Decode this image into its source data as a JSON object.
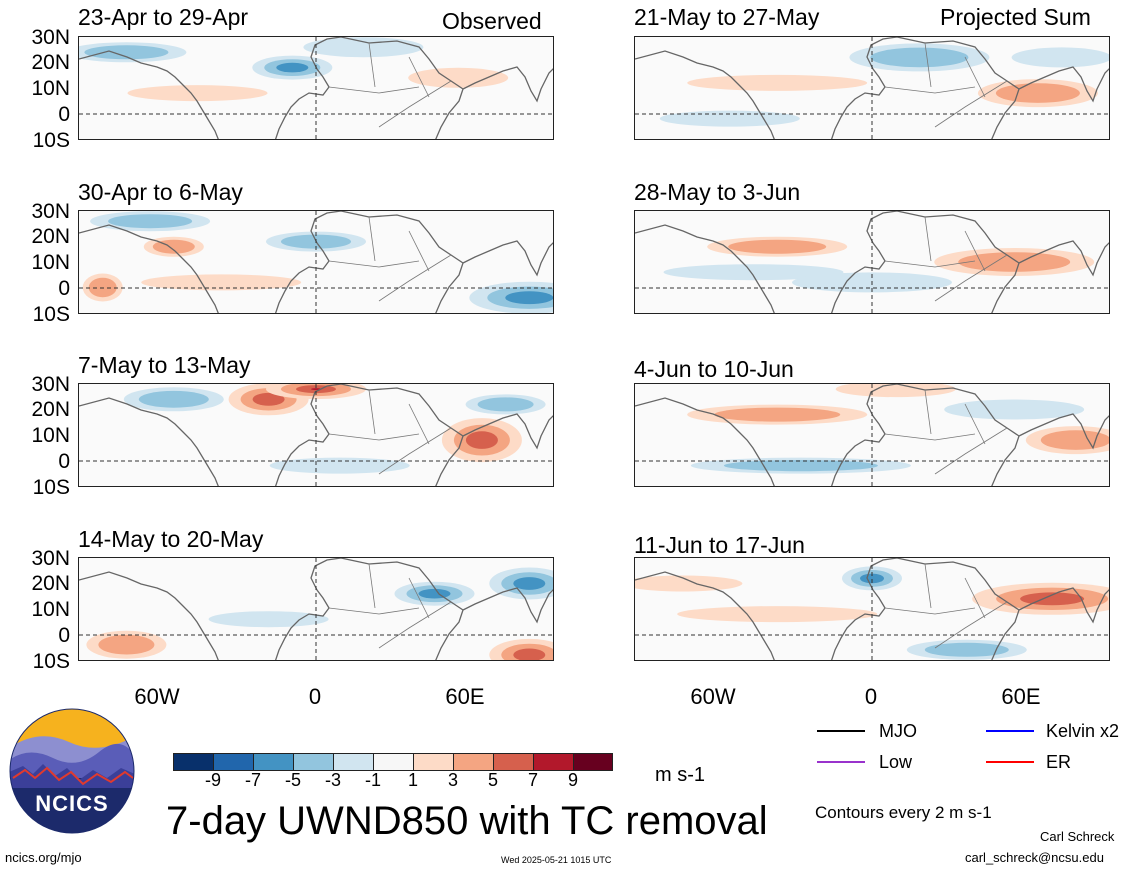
{
  "corner_labels": {
    "left": "Observed",
    "right": "Projected Sum"
  },
  "panels": [
    {
      "title": "23-Apr to 29-Apr",
      "side": "left"
    },
    {
      "title": "30-Apr to 6-May",
      "side": "left"
    },
    {
      "title": "7-May to 13-May",
      "side": "left"
    },
    {
      "title": "14-May to 20-May",
      "side": "left"
    },
    {
      "title": "21-May to 27-May",
      "side": "right"
    },
    {
      "title": "28-May to 3-Jun",
      "side": "right"
    },
    {
      "title": "4-Jun to 10-Jun",
      "side": "right"
    },
    {
      "title": "11-Jun to 17-Jun",
      "side": "right"
    }
  ],
  "lat_labels": [
    "30N",
    "20N",
    "10N",
    "0",
    "10S"
  ],
  "lon_labels": [
    "60W",
    "0",
    "60E"
  ],
  "colorbar": {
    "colors": [
      "#08306b",
      "#2166ac",
      "#4393c3",
      "#92c5de",
      "#d1e5f0",
      "#f7f7f7",
      "#fddbc7",
      "#f4a582",
      "#d6604d",
      "#b2182b",
      "#67001f"
    ],
    "ticks": [
      "-9",
      "-7",
      "-5",
      "-3",
      "-1",
      "1",
      "3",
      "5",
      "7",
      "9"
    ],
    "units": "m s-1"
  },
  "main_title": "7-day UWND850 with TC removal",
  "logo_text": "NCICS",
  "legend": [
    {
      "label": "MJO",
      "color": "#000000"
    },
    {
      "label": "Kelvin x2",
      "color": "#0000ff"
    },
    {
      "label": "Low",
      "color": "#9932cc"
    },
    {
      "label": "ER",
      "color": "#ff0000"
    }
  ],
  "contours_note": "Contours every 2 m s-1",
  "footer": {
    "url": "ncics.org/mjo",
    "timestamp": "Wed 2025-05-21 1015 UTC",
    "author": "Carl Schreck",
    "email": "carl_schreck@ncsu.edu"
  }
}
